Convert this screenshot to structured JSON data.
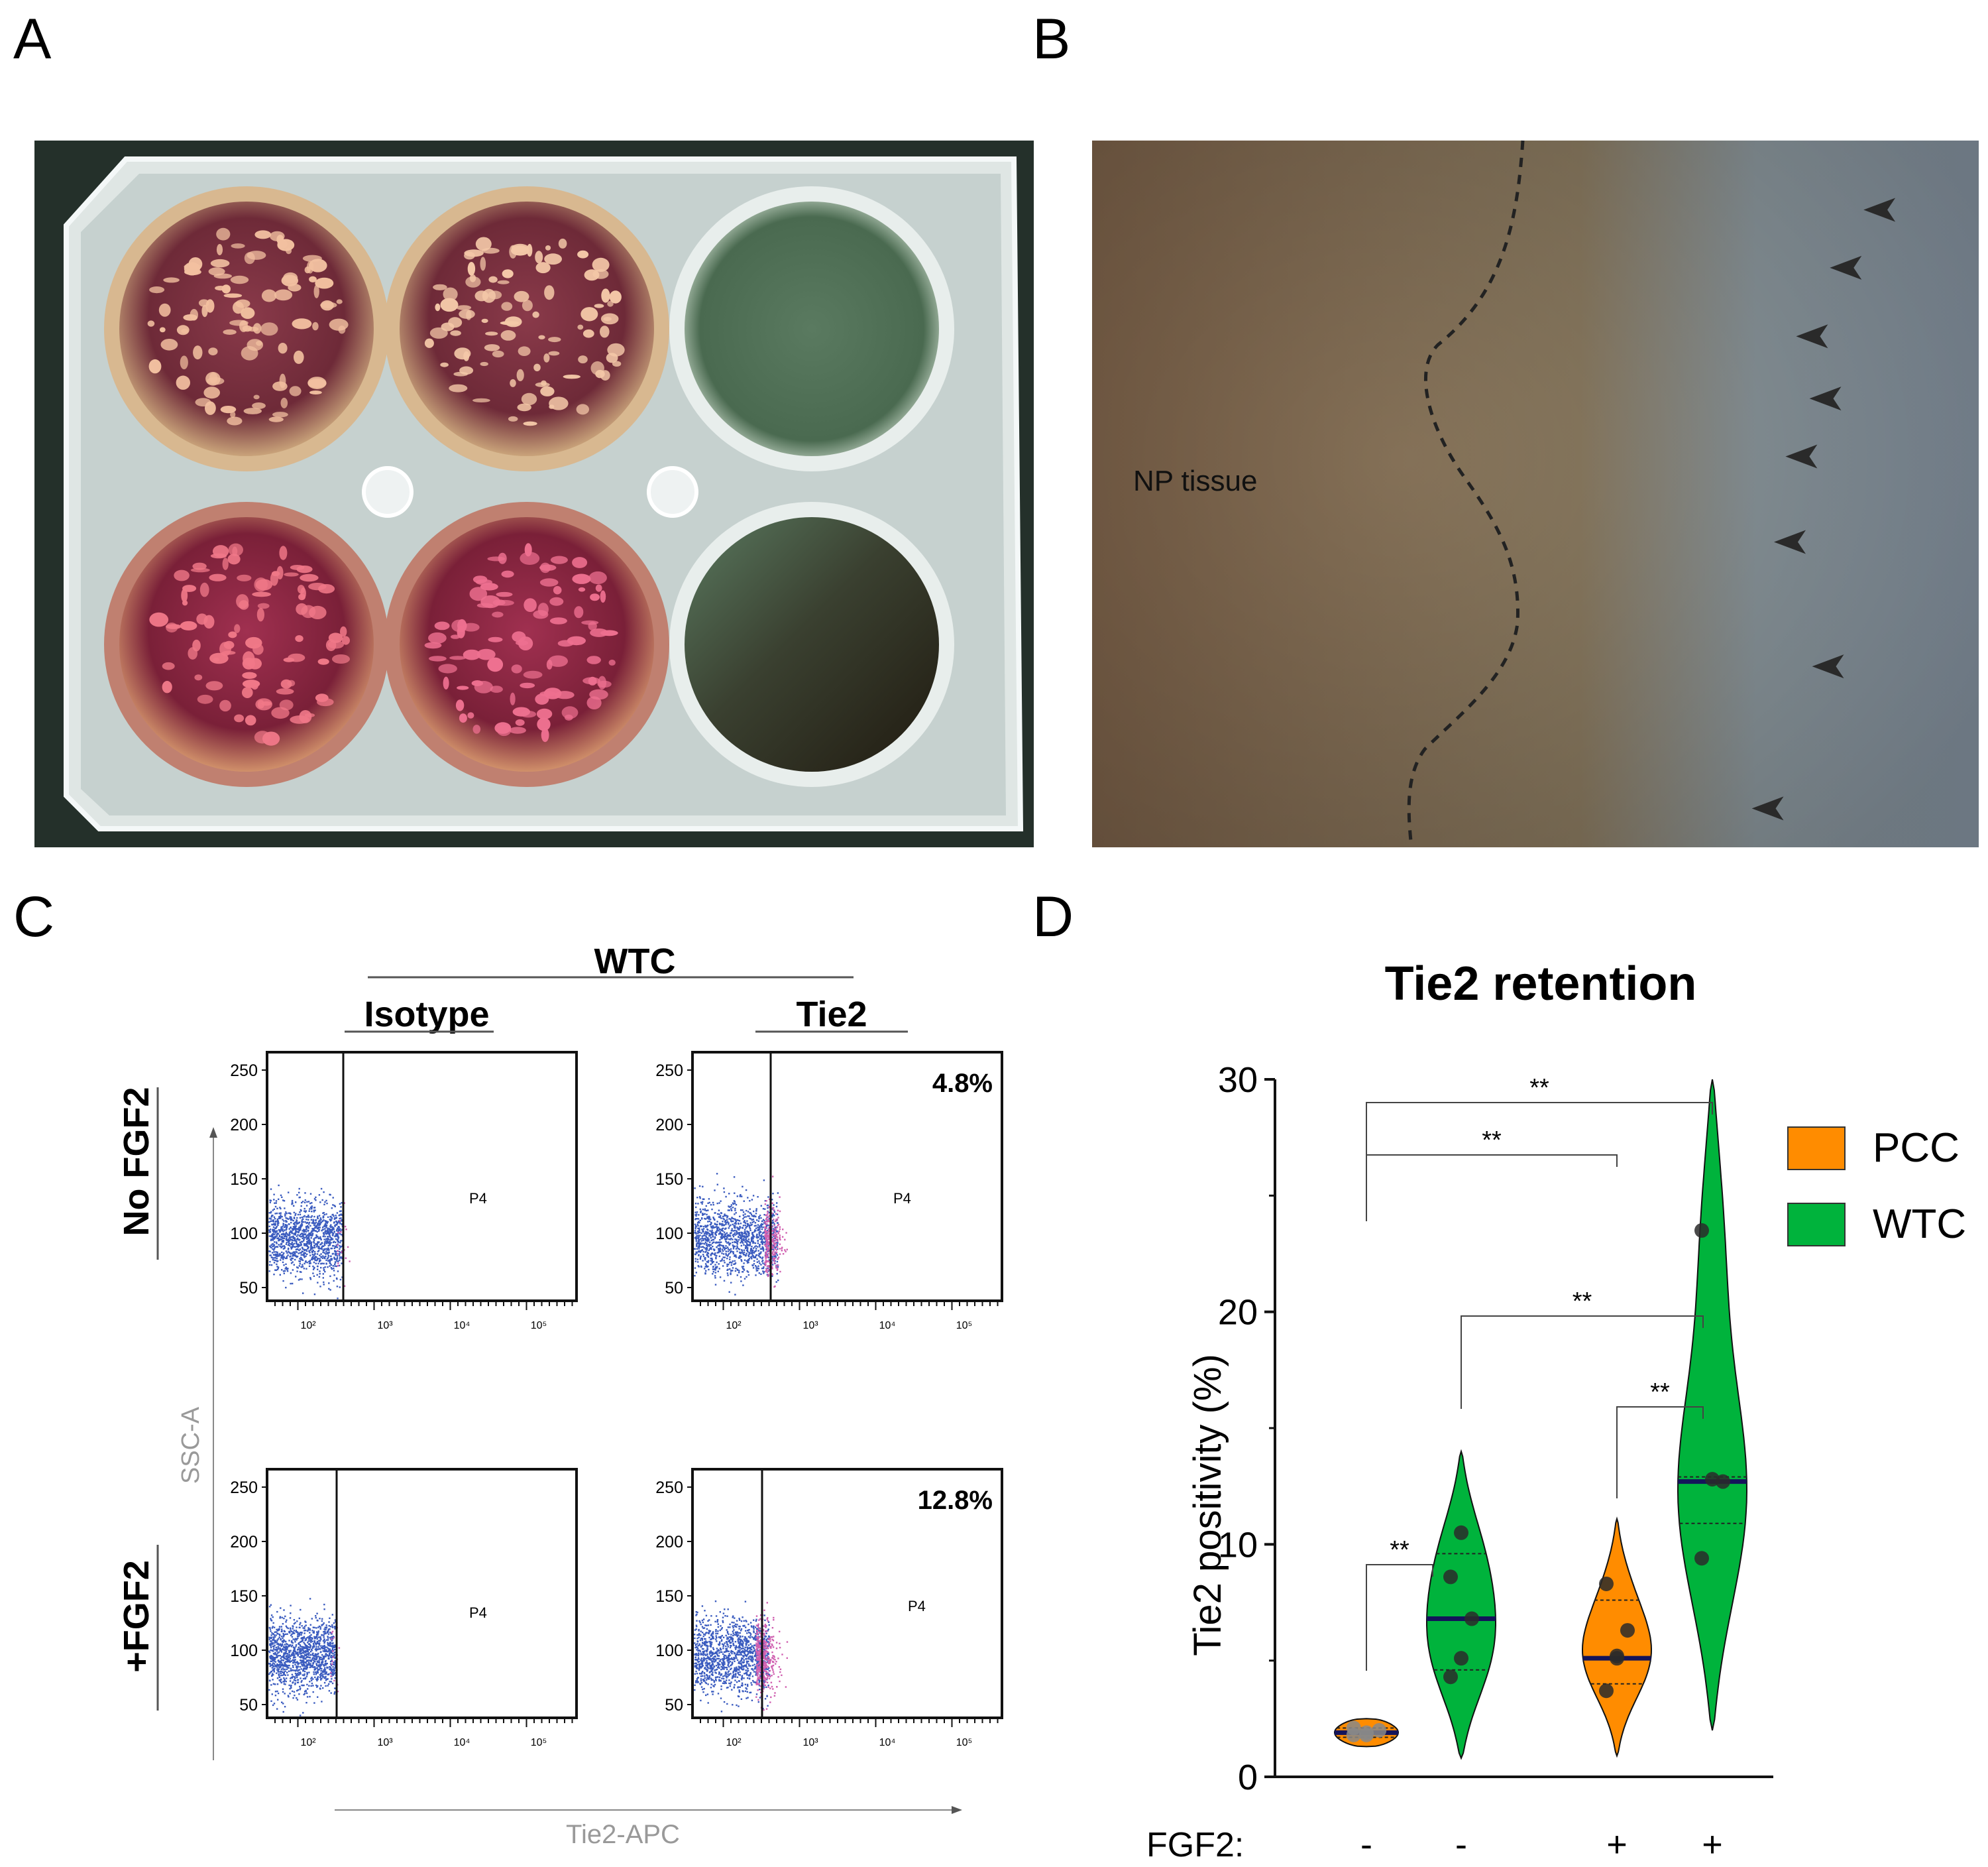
{
  "panel_labels": {
    "a": "A",
    "b": "B",
    "c": "C",
    "d": "D"
  },
  "panel_b": {
    "tissue_label": "NP tissue",
    "arrowheads": [
      [
        0.888,
        0.098
      ],
      [
        0.85,
        0.18
      ],
      [
        0.812,
        0.277
      ],
      [
        0.827,
        0.365
      ],
      [
        0.8,
        0.447
      ],
      [
        0.787,
        0.568
      ],
      [
        0.83,
        0.744
      ],
      [
        0.762,
        0.945
      ]
    ]
  },
  "panel_c": {
    "group_title": "WTC",
    "col_titles": [
      "Isotype",
      "Tie2"
    ],
    "row_titles": [
      "No FGF2",
      "+FGF2"
    ],
    "y_axis_label": "SSC-A",
    "x_axis_label": "Tie2-APC",
    "gate_name": "P4",
    "y_ticks": [
      "250",
      "200",
      "150",
      "100",
      "50"
    ],
    "x_ticks": [
      "10²",
      "10³",
      "10⁴",
      "10⁵"
    ],
    "percent_labels": {
      "no_fgf2_tie2": "4.8%",
      "fgf2_tie2": "12.8%"
    },
    "colors": {
      "negative_events": "#3a5bbf",
      "positive_events": "#d060b0"
    }
  },
  "chart_data": {
    "type": "violin",
    "title": "Tie2 retention",
    "ylabel": "Tie2 positivity (%)",
    "xlabel": "FGF2:",
    "ylim": [
      0,
      30
    ],
    "y_ticks": [
      "0",
      "10",
      "20",
      "30"
    ],
    "categories": [
      "-",
      "-",
      "+",
      "+"
    ],
    "legend": [
      {
        "name": "PCC",
        "color": "#ff8c00"
      },
      {
        "name": "WTC",
        "color": "#00b33c"
      }
    ],
    "groups": [
      {
        "cell": "PCC",
        "fgf2": "-",
        "color": "#ff8c00",
        "range": [
          1.3,
          2.5
        ],
        "median": 1.9,
        "q1": 1.7,
        "q3": 2.1,
        "points": [
          1.8,
          1.9,
          2.0,
          2.1,
          1.8
        ]
      },
      {
        "cell": "WTC",
        "fgf2": "-",
        "color": "#00b33c",
        "range": [
          0.8,
          14.0
        ],
        "median": 6.8,
        "q1": 4.6,
        "q3": 9.6,
        "points": [
          4.3,
          5.1,
          6.8,
          8.6,
          10.5
        ]
      },
      {
        "cell": "PCC",
        "fgf2": "+",
        "color": "#ff8c00",
        "range": [
          0.9,
          11.1
        ],
        "median": 5.1,
        "q1": 4.0,
        "q3": 7.6,
        "points": [
          3.7,
          5.1,
          6.3,
          8.3,
          5.2
        ]
      },
      {
        "cell": "WTC",
        "fgf2": "+",
        "color": "#00b33c",
        "range": [
          2.0,
          30.0
        ],
        "median": 12.7,
        "q1": 10.9,
        "q3": 12.9,
        "points": [
          9.4,
          12.8,
          12.7,
          23.5
        ]
      }
    ],
    "significance": [
      {
        "from": 0,
        "to": 3,
        "label": "**"
      },
      {
        "from": 0,
        "to": 2,
        "label": "**"
      },
      {
        "from": 1,
        "to": 3,
        "label": "**"
      },
      {
        "from": 2,
        "to": 3,
        "label": "**"
      },
      {
        "from": 0,
        "to": 1,
        "label": "**"
      }
    ]
  }
}
